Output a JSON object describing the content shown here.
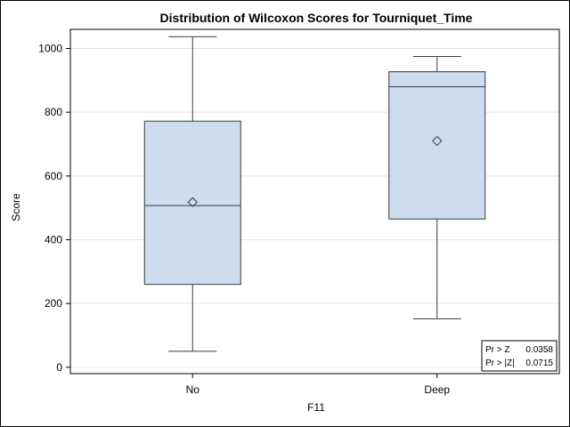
{
  "chart_data": {
    "type": "box",
    "title": "Distribution of Wilcoxon Scores for Tourniquet_Time",
    "xlabel": "F11",
    "ylabel": "Score",
    "ylim": [
      -20,
      1060
    ],
    "yticks": [
      0,
      200,
      400,
      600,
      800,
      1000
    ],
    "grid": true,
    "categories": [
      "No",
      "Deep"
    ],
    "boxes": [
      {
        "category": "No",
        "min": 50,
        "q1": 260,
        "median": 507,
        "q3": 772,
        "max": 1037,
        "mean": 518
      },
      {
        "category": "Deep",
        "min": 152,
        "q1": 465,
        "median": 880,
        "q3": 927,
        "max": 975,
        "mean": 710
      }
    ],
    "stats_inset": [
      {
        "label": "Pr > Z",
        "value": "0.0358"
      },
      {
        "label": "Pr > |Z|",
        "value": "0.0715"
      }
    ],
    "colors": {
      "box_fill": "#cddcee",
      "box_stroke": "#3a3a3a",
      "grid": "#e3e3e3"
    }
  }
}
